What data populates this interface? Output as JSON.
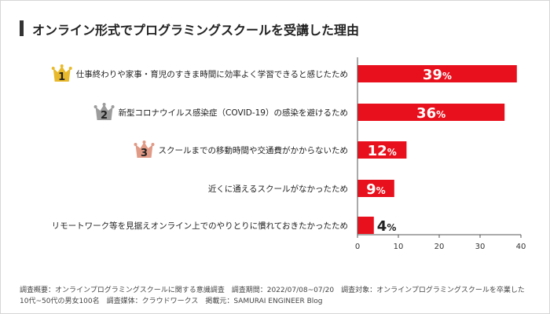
{
  "title": "オンライン形式でプログラミングスクールを受講した理由",
  "chart_data": {
    "type": "bar",
    "orientation": "horizontal",
    "categories": [
      "仕事終わりや家事・育児のすきま時間に効率よく学習できると感じたため",
      "新型コロナウイルス感染症（COVID-19）の感染を避けるため",
      "スクールまでの移動時間や交通費がかからないため",
      "近くに通えるスクールがなかったため",
      "リモートワーク等を見据えオンライン上でのやりとりに慣れておきたかったため"
    ],
    "values": [
      39,
      36,
      12,
      9,
      4
    ],
    "value_unit": "%",
    "ranks": [
      "1",
      "2",
      "3",
      null,
      null
    ],
    "xlim": [
      0,
      40
    ],
    "xticks": [
      0,
      10,
      20,
      30,
      40
    ],
    "grid": false,
    "bar_color": "#e8101c",
    "crown_colors": [
      "#e8b92a",
      "#9c9c9c",
      "#e09a86"
    ]
  },
  "notes": {
    "line1": "調査概要：オンラインプログラミングスクールに関する意識調査　調査期間：2022/07/08~07/20　調査対象：オンラインプログラミングスクールを卒業した",
    "line2": "10代~50代の男女100名　調査媒体：クラウドワークス　掲載元：SAMURAI ENGINEER Blog"
  }
}
